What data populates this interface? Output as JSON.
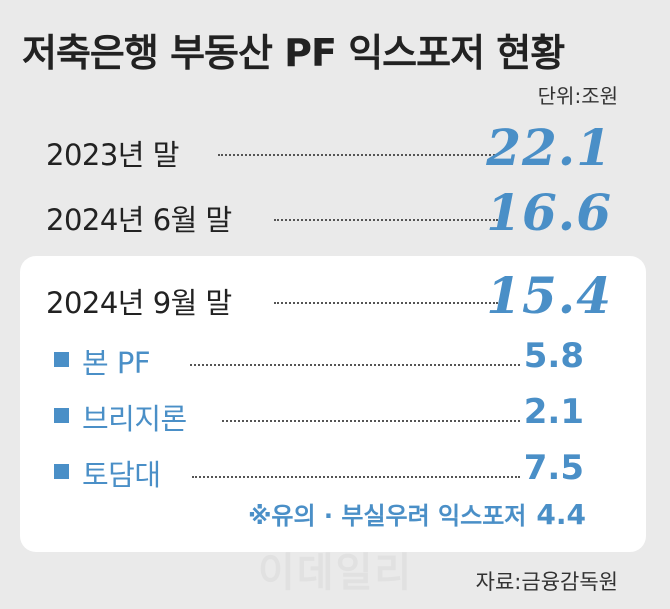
{
  "title": "저축은행 부동산 PF 익스포저 현황",
  "unit": "단위:조원",
  "source": "자료:금융감독원",
  "watermark": "이데일리",
  "chart_data": {
    "type": "table",
    "title": "저축은행 부동산 PF 익스포저 현황",
    "unit": "단위:조원",
    "rows": [
      {
        "label": "2023년 말",
        "value": "22.1"
      },
      {
        "label": "2024년 6월 말",
        "value": "16.6"
      },
      {
        "label": "2024년 9월 말",
        "value": "15.4"
      }
    ],
    "breakdown": [
      {
        "label": "본 PF",
        "value": "5.8"
      },
      {
        "label": "브리지론",
        "value": "2.1"
      },
      {
        "label": "토담대",
        "value": "7.5"
      }
    ],
    "note": {
      "label": "※유의 · 부실우려 익스포저",
      "value": "4.4"
    }
  },
  "colors": {
    "accent": "#4a8fc7",
    "background": "#eaeaea",
    "card": "#ffffff"
  }
}
